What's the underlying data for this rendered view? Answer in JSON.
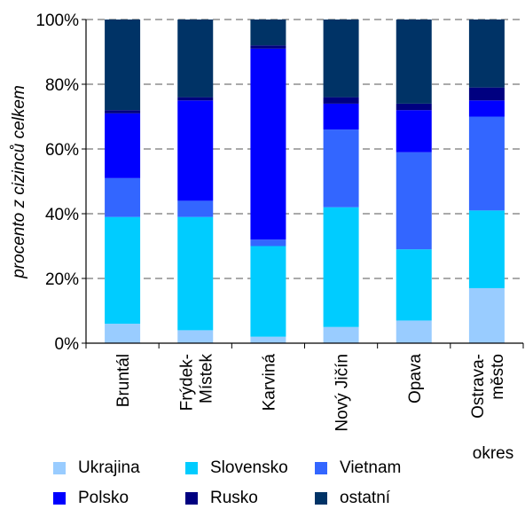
{
  "chart_data": {
    "type": "bar",
    "stacked": true,
    "categories": [
      [
        "Bruntál"
      ],
      [
        "Frýdek-",
        "Místek"
      ],
      [
        "Karviná"
      ],
      [
        "Nový Jičín"
      ],
      [
        "Opava"
      ],
      [
        "Ostrava-",
        "město"
      ]
    ],
    "series": [
      {
        "name": "Ukrajina",
        "color": "#99ccff",
        "values": [
          6,
          4,
          2,
          5,
          7,
          17
        ]
      },
      {
        "name": "Slovensko",
        "color": "#00ccff",
        "values": [
          33,
          35,
          28,
          37,
          22,
          24
        ]
      },
      {
        "name": "Vietnam",
        "color": "#3366ff",
        "values": [
          12,
          5,
          2,
          24,
          30,
          29
        ]
      },
      {
        "name": "Polsko",
        "color": "#0000ff",
        "values": [
          20,
          31,
          59,
          8,
          13,
          5
        ]
      },
      {
        "name": "Rusko",
        "color": "#000080",
        "values": [
          1,
          1,
          1,
          2,
          2,
          4
        ]
      },
      {
        "name": "ostatní",
        "color": "#003366",
        "values": [
          28,
          24,
          8,
          24,
          26,
          21
        ]
      }
    ],
    "ylabel": "procento z cizinců celkem",
    "xlabel": "okres",
    "ylim": [
      0,
      100
    ],
    "yticks": [
      "0%",
      "20%",
      "40%",
      "60%",
      "80%",
      "100%"
    ],
    "grid": "horizontal dashed",
    "legend_position": "bottom"
  }
}
